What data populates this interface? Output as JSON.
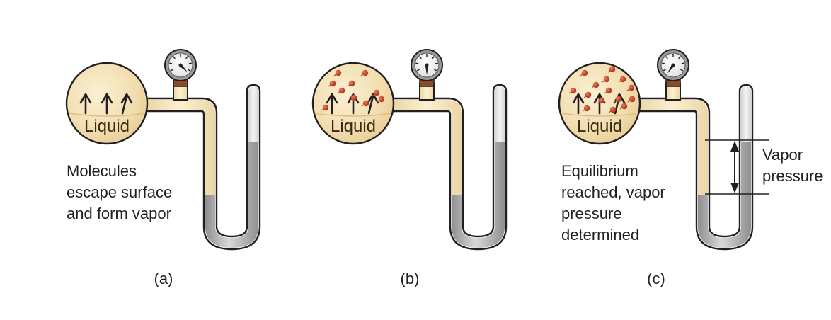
{
  "panels": [
    {
      "label": "(a)",
      "bulb_label": "Liquid",
      "description": [
        "Molecules",
        "escape surface",
        "and form vapor"
      ],
      "gauge_level": "low",
      "vapor_molecules": "none"
    },
    {
      "label": "(b)",
      "bulb_label": "Liquid",
      "description": [],
      "gauge_level": "middle",
      "vapor_molecules": "some"
    },
    {
      "label": "(c)",
      "bulb_label": "Liquid",
      "description": [
        "Equilibrium",
        "reached, vapor",
        "pressure",
        "determined"
      ],
      "gauge_level": "high",
      "vapor_molecules": "many"
    }
  ],
  "annotation": {
    "lines": [
      "Vapor",
      "pressure"
    ]
  },
  "colors": {
    "bulb": "#f2ddb0",
    "tube_gas": "#f6e7bf",
    "mercury": "#b9b9bb",
    "tube_empty": "#e9e9ea",
    "outline": "#231f20",
    "molecule": "#c1401f",
    "stopper": "#8b4a2a"
  }
}
